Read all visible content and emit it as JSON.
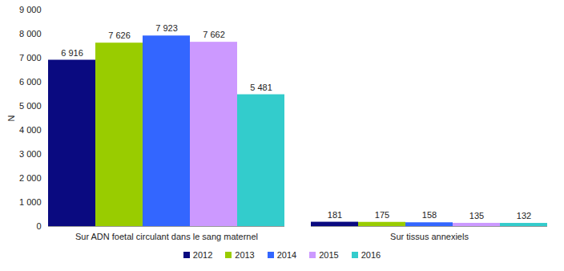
{
  "chart_data": {
    "type": "bar",
    "y_label": "N",
    "categories": [
      "Sur ADN foetal circulant dans le sang maternel",
      "Sur tissus annexiels"
    ],
    "series": [
      {
        "name": "2012",
        "color": "#0a0a80",
        "values": [
          6916,
          181
        ],
        "value_labels": [
          "6 916",
          "181"
        ]
      },
      {
        "name": "2013",
        "color": "#99cc00",
        "values": [
          7626,
          175
        ],
        "value_labels": [
          "7 626",
          "175"
        ]
      },
      {
        "name": "2014",
        "color": "#3366ff",
        "values": [
          7923,
          158
        ],
        "value_labels": [
          "7 923",
          "158"
        ]
      },
      {
        "name": "2015",
        "color": "#cc99ff",
        "values": [
          7662,
          135
        ],
        "value_labels": [
          "7 662",
          "135"
        ]
      },
      {
        "name": "2016",
        "color": "#33cccc",
        "values": [
          5481,
          132
        ],
        "value_labels": [
          "5 481",
          "132"
        ]
      }
    ],
    "ylim": [
      0,
      9000
    ],
    "yticks": [
      0,
      {
        "value": 1000,
        "label": "1 000"
      },
      {
        "value": 2000,
        "label": "2 000"
      },
      {
        "value": 3000,
        "label": "3 000"
      },
      {
        "value": 4000,
        "label": "4 000"
      },
      {
        "value": 5000,
        "label": "5 000"
      },
      {
        "value": 6000,
        "label": "6 000"
      },
      {
        "value": 7000,
        "label": "7 000"
      },
      {
        "value": 8000,
        "label": "8 000"
      },
      {
        "value": 9000,
        "label": "9 000"
      }
    ],
    "grid": false,
    "data_labels": true,
    "legend": "bottom"
  }
}
